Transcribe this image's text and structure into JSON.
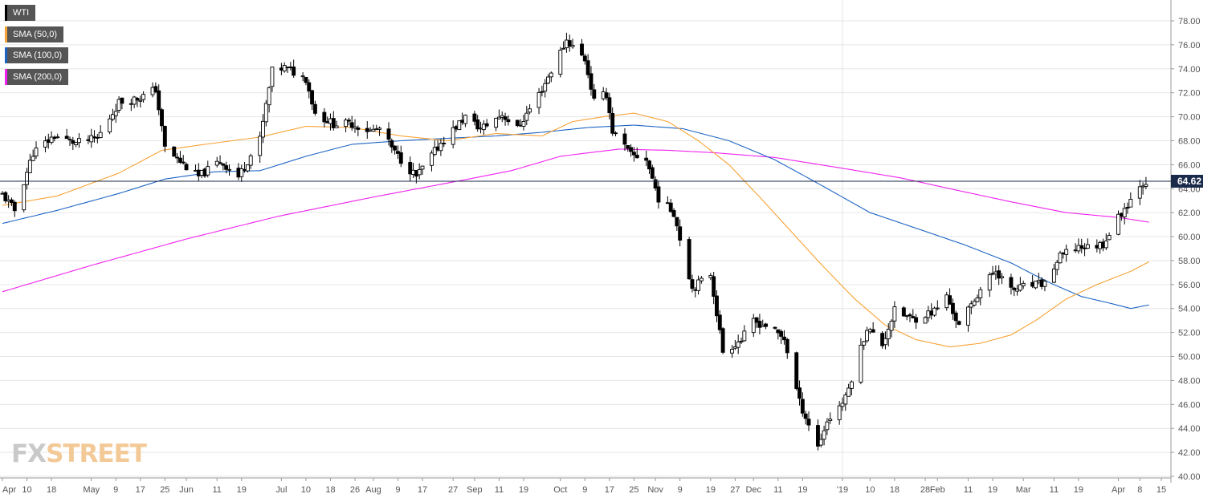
{
  "legend": [
    {
      "label": "WTI",
      "color": "#000000"
    },
    {
      "label": "SMA (50,0)",
      "color": "#f7a235"
    },
    {
      "label": "SMA (100,0)",
      "color": "#1c64c4"
    },
    {
      "label": "SMA (200,0)",
      "color": "#ee22ee"
    }
  ],
  "brand": {
    "fx": "FX",
    "street": "STREET"
  },
  "chart_data": {
    "type": "candlestick",
    "instrument": "WTI",
    "ylim": [
      40,
      78
    ],
    "yticks": [
      "78.00",
      "76.00",
      "74.00",
      "72.00",
      "70.00",
      "68.00",
      "66.00",
      "64.00",
      "62.00",
      "60.00",
      "58.00",
      "56.00",
      "54.00",
      "52.00",
      "50.00",
      "48.00",
      "46.00",
      "44.00",
      "42.00",
      "40.00"
    ],
    "xlim": [
      "2018-04-02",
      "2019-04-15"
    ],
    "xticks": [
      {
        "date": "2018-04-02",
        "label": "Apr"
      },
      {
        "date": "2018-04-10",
        "label": "10"
      },
      {
        "date": "2018-04-18",
        "label": "18"
      },
      {
        "date": "2018-05-01",
        "label": "May"
      },
      {
        "date": "2018-05-09",
        "label": "9"
      },
      {
        "date": "2018-05-17",
        "label": "17"
      },
      {
        "date": "2018-05-25",
        "label": "25"
      },
      {
        "date": "2018-06-01",
        "label": "Jun"
      },
      {
        "date": "2018-06-11",
        "label": "11"
      },
      {
        "date": "2018-06-19",
        "label": "19"
      },
      {
        "date": "2018-07-02",
        "label": "Jul"
      },
      {
        "date": "2018-07-10",
        "label": "10"
      },
      {
        "date": "2018-07-18",
        "label": "18"
      },
      {
        "date": "2018-07-26",
        "label": "26"
      },
      {
        "date": "2018-08-01",
        "label": "Aug"
      },
      {
        "date": "2018-08-09",
        "label": "9"
      },
      {
        "date": "2018-08-17",
        "label": "17"
      },
      {
        "date": "2018-08-27",
        "label": "27"
      },
      {
        "date": "2018-09-03",
        "label": "Sep"
      },
      {
        "date": "2018-09-11",
        "label": "11"
      },
      {
        "date": "2018-09-19",
        "label": "19"
      },
      {
        "date": "2018-10-01",
        "label": "Oct"
      },
      {
        "date": "2018-10-09",
        "label": "9"
      },
      {
        "date": "2018-10-17",
        "label": "17"
      },
      {
        "date": "2018-10-25",
        "label": "25"
      },
      {
        "date": "2018-11-01",
        "label": "Nov"
      },
      {
        "date": "2018-11-09",
        "label": "9"
      },
      {
        "date": "2018-11-19",
        "label": "19"
      },
      {
        "date": "2018-11-27",
        "label": "27"
      },
      {
        "date": "2018-12-03",
        "label": "Dec"
      },
      {
        "date": "2018-12-11",
        "label": "11"
      },
      {
        "date": "2018-12-19",
        "label": "19"
      },
      {
        "date": "2019-01-01",
        "label": "'19"
      },
      {
        "date": "2019-01-10",
        "label": "10"
      },
      {
        "date": "2019-01-18",
        "label": "18"
      },
      {
        "date": "2019-01-28",
        "label": "28"
      },
      {
        "date": "2019-02-01",
        "label": "Feb"
      },
      {
        "date": "2019-02-11",
        "label": "11"
      },
      {
        "date": "2019-02-19",
        "label": "19"
      },
      {
        "date": "2019-03-01",
        "label": "Mar"
      },
      {
        "date": "2019-03-11",
        "label": "11"
      },
      {
        "date": "2019-03-19",
        "label": "19"
      },
      {
        "date": "2019-04-01",
        "label": "Apr"
      },
      {
        "date": "2019-04-08",
        "label": "8"
      },
      {
        "date": "2019-04-15",
        "label": "15"
      }
    ],
    "last_price": "64.62",
    "last_price_value": 64.62,
    "price_anchors": [
      [
        "2018-04-02",
        63.5
      ],
      [
        "2018-04-06",
        62.2
      ],
      [
        "2018-04-12",
        67.0
      ],
      [
        "2018-04-19",
        68.4
      ],
      [
        "2018-04-26",
        67.8
      ],
      [
        "2018-05-03",
        68.2
      ],
      [
        "2018-05-10",
        71.2
      ],
      [
        "2018-05-17",
        71.6
      ],
      [
        "2018-05-22",
        72.3
      ],
      [
        "2018-05-25",
        67.4
      ],
      [
        "2018-06-01",
        65.8
      ],
      [
        "2018-06-05",
        65.0
      ],
      [
        "2018-06-12",
        66.3
      ],
      [
        "2018-06-18",
        65.0
      ],
      [
        "2018-06-25",
        68.1
      ],
      [
        "2018-06-29",
        73.8
      ],
      [
        "2018-07-03",
        74.1
      ],
      [
        "2018-07-10",
        73.2
      ],
      [
        "2018-07-13",
        70.3
      ],
      [
        "2018-07-19",
        69.4
      ],
      [
        "2018-07-25",
        69.4
      ],
      [
        "2018-07-31",
        68.8
      ],
      [
        "2018-08-03",
        69.0
      ],
      [
        "2018-08-08",
        67.0
      ],
      [
        "2018-08-15",
        65.0
      ],
      [
        "2018-08-23",
        67.8
      ],
      [
        "2018-08-31",
        70.0
      ],
      [
        "2018-09-05",
        69.0
      ],
      [
        "2018-09-12",
        70.2
      ],
      [
        "2018-09-17",
        69.0
      ],
      [
        "2018-09-25",
        72.3
      ],
      [
        "2018-10-03",
        76.4
      ],
      [
        "2018-10-09",
        74.8
      ],
      [
        "2018-10-12",
        71.3
      ],
      [
        "2018-10-16",
        71.9
      ],
      [
        "2018-10-18",
        68.8
      ],
      [
        "2018-10-24",
        66.8
      ],
      [
        "2018-10-29",
        66.5
      ],
      [
        "2018-11-02",
        63.2
      ],
      [
        "2018-11-07",
        62.0
      ],
      [
        "2018-11-13",
        55.7
      ],
      [
        "2018-11-19",
        56.9
      ],
      [
        "2018-11-23",
        50.4
      ],
      [
        "2018-11-29",
        51.4
      ],
      [
        "2018-12-03",
        52.9
      ],
      [
        "2018-12-07",
        52.6
      ],
      [
        "2018-12-13",
        51.5
      ],
      [
        "2018-12-18",
        46.2
      ],
      [
        "2018-12-24",
        42.5
      ],
      [
        "2018-12-27",
        44.6
      ],
      [
        "2019-01-02",
        46.5
      ],
      [
        "2019-01-09",
        52.4
      ],
      [
        "2019-01-14",
        51.0
      ],
      [
        "2019-01-18",
        53.8
      ],
      [
        "2019-01-24",
        53.1
      ],
      [
        "2019-01-31",
        53.8
      ],
      [
        "2019-02-04",
        55.0
      ],
      [
        "2019-02-08",
        52.5
      ],
      [
        "2019-02-15",
        55.6
      ],
      [
        "2019-02-20",
        57.2
      ],
      [
        "2019-02-25",
        55.5
      ],
      [
        "2019-03-01",
        55.8
      ],
      [
        "2019-03-08",
        56.1
      ],
      [
        "2019-03-13",
        58.3
      ],
      [
        "2019-03-19",
        59.2
      ],
      [
        "2019-03-22",
        59.1
      ],
      [
        "2019-03-27",
        59.4
      ],
      [
        "2019-04-01",
        61.6
      ],
      [
        "2019-04-05",
        63.1
      ],
      [
        "2019-04-08",
        64.4
      ],
      [
        "2019-04-10",
        64.62
      ]
    ],
    "sma_50": [
      [
        "2018-04-02",
        62.6
      ],
      [
        "2018-04-20",
        63.4
      ],
      [
        "2018-05-10",
        65.3
      ],
      [
        "2018-05-24",
        67.2
      ],
      [
        "2018-06-10",
        67.8
      ],
      [
        "2018-06-25",
        68.3
      ],
      [
        "2018-07-10",
        69.2
      ],
      [
        "2018-07-25",
        69.1
      ],
      [
        "2018-08-10",
        68.4
      ],
      [
        "2018-08-25",
        68.0
      ],
      [
        "2018-09-10",
        68.6
      ],
      [
        "2018-09-25",
        68.4
      ],
      [
        "2018-10-05",
        69.6
      ],
      [
        "2018-10-15",
        70.0
      ],
      [
        "2018-10-25",
        70.3
      ],
      [
        "2018-11-05",
        69.6
      ],
      [
        "2018-11-15",
        68.0
      ],
      [
        "2018-11-25",
        66.0
      ],
      [
        "2018-12-05",
        63.3
      ],
      [
        "2018-12-15",
        60.5
      ],
      [
        "2018-12-25",
        57.7
      ],
      [
        "2019-01-05",
        54.8
      ],
      [
        "2019-01-15",
        52.6
      ],
      [
        "2019-01-25",
        51.4
      ],
      [
        "2019-02-05",
        50.8
      ],
      [
        "2019-02-15",
        51.1
      ],
      [
        "2019-02-25",
        51.8
      ],
      [
        "2019-03-05",
        53.0
      ],
      [
        "2019-03-15",
        54.8
      ],
      [
        "2019-03-25",
        56.0
      ],
      [
        "2019-04-05",
        57.1
      ],
      [
        "2019-04-11",
        57.9
      ]
    ],
    "sma_100": [
      [
        "2018-04-02",
        61.1
      ],
      [
        "2018-04-20",
        62.2
      ],
      [
        "2018-05-10",
        63.6
      ],
      [
        "2018-05-25",
        64.8
      ],
      [
        "2018-06-10",
        65.4
      ],
      [
        "2018-06-25",
        65.5
      ],
      [
        "2018-07-10",
        66.7
      ],
      [
        "2018-07-25",
        67.7
      ],
      [
        "2018-08-10",
        68.0
      ],
      [
        "2018-08-25",
        68.2
      ],
      [
        "2018-09-10",
        68.4
      ],
      [
        "2018-09-25",
        68.7
      ],
      [
        "2018-10-10",
        69.1
      ],
      [
        "2018-10-25",
        69.3
      ],
      [
        "2018-11-10",
        69.0
      ],
      [
        "2018-11-25",
        68.0
      ],
      [
        "2018-12-10",
        66.4
      ],
      [
        "2018-12-25",
        64.3
      ],
      [
        "2019-01-10",
        62.0
      ],
      [
        "2019-01-25",
        60.7
      ],
      [
        "2019-02-10",
        59.3
      ],
      [
        "2019-02-25",
        57.8
      ],
      [
        "2019-03-10",
        56.1
      ],
      [
        "2019-03-20",
        55.0
      ],
      [
        "2019-03-30",
        54.4
      ],
      [
        "2019-04-05",
        54.0
      ],
      [
        "2019-04-11",
        54.3
      ]
    ],
    "sma_200": [
      [
        "2018-04-02",
        55.4
      ],
      [
        "2018-05-01",
        57.6
      ],
      [
        "2018-06-01",
        59.8
      ],
      [
        "2018-07-01",
        61.7
      ],
      [
        "2018-08-01",
        63.3
      ],
      [
        "2018-09-01",
        64.8
      ],
      [
        "2018-09-15",
        65.5
      ],
      [
        "2018-10-01",
        66.7
      ],
      [
        "2018-10-20",
        67.3
      ],
      [
        "2018-11-05",
        67.2
      ],
      [
        "2018-11-20",
        67.0
      ],
      [
        "2018-12-10",
        66.6
      ],
      [
        "2019-01-01",
        65.7
      ],
      [
        "2019-01-20",
        64.9
      ],
      [
        "2019-02-05",
        64.0
      ],
      [
        "2019-02-25",
        62.9
      ],
      [
        "2019-03-15",
        62.0
      ],
      [
        "2019-04-01",
        61.6
      ],
      [
        "2019-04-11",
        61.2
      ]
    ]
  }
}
